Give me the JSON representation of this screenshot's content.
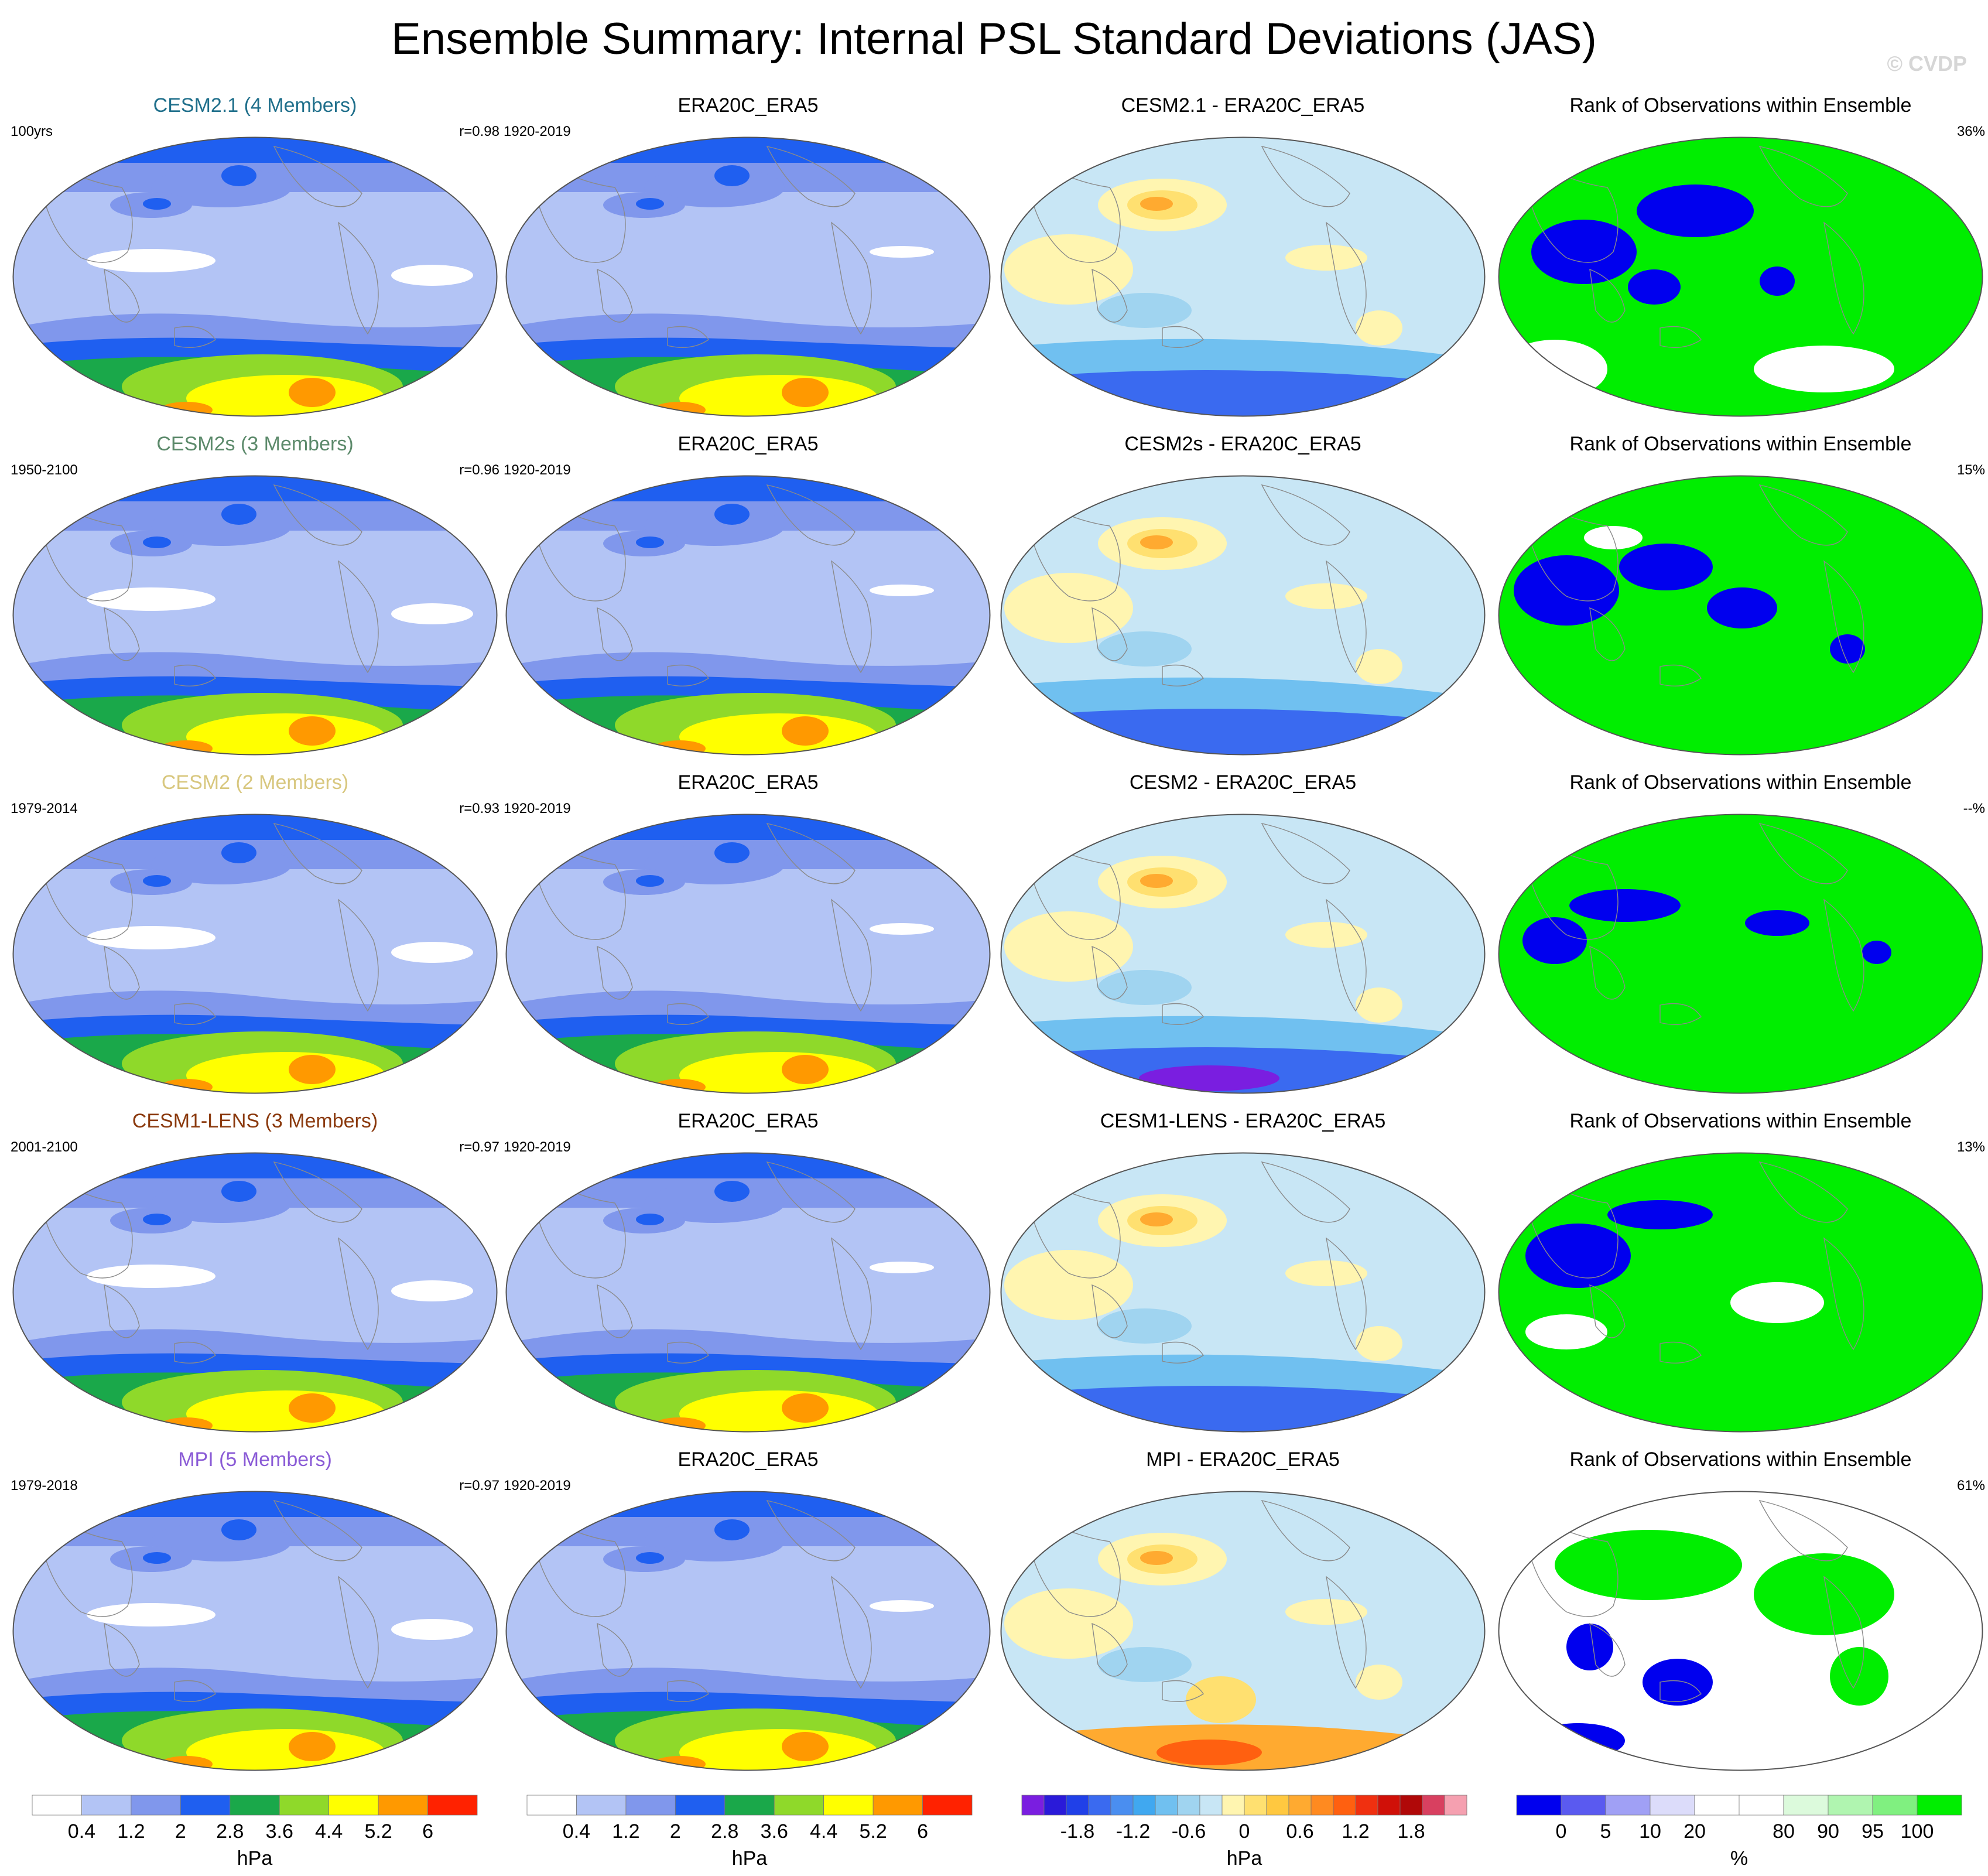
{
  "title": "Ensemble Summary: Internal PSL Standard Deviations (JAS)",
  "credit": "© CVDP",
  "rows": [
    {
      "model_title": "CESM2.1 (4 Members)",
      "model_color": "#1f6f8b",
      "years": "100yrs",
      "r": "r=0.98",
      "obs_title": "ERA20C_ERA5",
      "obs_years": "1920-2019",
      "diff_title": "CESM2.1 - ERA20C_ERA5",
      "rank_title": "Rank of Observations within Ensemble",
      "rank_pct": "36%"
    },
    {
      "model_title": "CESM2s (3 Members)",
      "model_color": "#5c8a6b",
      "years": "1950-2100",
      "r": "r=0.96",
      "obs_title": "ERA20C_ERA5",
      "obs_years": "1920-2019",
      "diff_title": "CESM2s - ERA20C_ERA5",
      "rank_title": "Rank of Observations within Ensemble",
      "rank_pct": "15%"
    },
    {
      "model_title": "CESM2 (2 Members)",
      "model_color": "#d8c77e",
      "years": "1979-2014",
      "r": "r=0.93",
      "obs_title": "ERA20C_ERA5",
      "obs_years": "1920-2019",
      "diff_title": "CESM2 - ERA20C_ERA5",
      "rank_title": "Rank of Observations within Ensemble",
      "rank_pct": "--%"
    },
    {
      "model_title": "CESM1-LENS (3 Members)",
      "model_color": "#8b3a0e",
      "years": "2001-2100",
      "r": "r=0.97",
      "obs_title": "ERA20C_ERA5",
      "obs_years": "1920-2019",
      "diff_title": "CESM1-LENS - ERA20C_ERA5",
      "rank_title": "Rank of Observations within Ensemble",
      "rank_pct": "13%"
    },
    {
      "model_title": "MPI (5 Members)",
      "model_color": "#8a5bd6",
      "years": "1979-2018",
      "r": "r=0.97",
      "obs_title": "ERA20C_ERA5",
      "obs_years": "1920-2019",
      "diff_title": "MPI - ERA20C_ERA5",
      "rank_title": "Rank of Observations within Ensemble",
      "rank_pct": "61%"
    }
  ],
  "colorbars": [
    {
      "unit": "hPa",
      "colors": [
        "#ffffff",
        "#b3c4f5",
        "#8097ec",
        "#1f5ff0",
        "#1aa84a",
        "#8fd92a",
        "#ffff00",
        "#ff9900",
        "#ff2200"
      ],
      "labels": [
        "0.4",
        "1.2",
        "2",
        "2.8",
        "3.6",
        "4.4",
        "5.2",
        "6"
      ]
    },
    {
      "unit": "hPa",
      "colors": [
        "#ffffff",
        "#b3c4f5",
        "#8097ec",
        "#1f5ff0",
        "#1aa84a",
        "#8fd92a",
        "#ffff00",
        "#ff9900",
        "#ff2200"
      ],
      "labels": [
        "0.4",
        "1.2",
        "2",
        "2.8",
        "3.6",
        "4.4",
        "5.2",
        "6"
      ]
    },
    {
      "unit": "hPa",
      "colors": [
        "#7a1ee0",
        "#2a1ad9",
        "#2040e8",
        "#3a6af0",
        "#4a8ef0",
        "#40a8f0",
        "#70c0f0",
        "#a0d4f0",
        "#c8e6f5",
        "#fff5b0",
        "#ffe070",
        "#ffc840",
        "#ffaa30",
        "#ff8a20",
        "#ff6010",
        "#f03010",
        "#d01008",
        "#b00808",
        "#d84060",
        "#f5a0b0"
      ],
      "labels": [
        "-1.8",
        "-1.2",
        "-0.6",
        "0",
        "0.6",
        "1.2",
        "1.8"
      ]
    },
    {
      "unit": "%",
      "colors": [
        "#0000ee",
        "#5a5af0",
        "#a0a0f5",
        "#dcdcfa",
        "#ffffff",
        "#ffffff",
        "#dcfadc",
        "#b0f5b0",
        "#80f080",
        "#00ee00"
      ],
      "labels": [
        "0",
        "5",
        "10",
        "20",
        "80",
        "90",
        "95",
        "100"
      ]
    }
  ],
  "palettes": {
    "std": [
      "#ffffff",
      "#b3c4f5",
      "#8097ec",
      "#1f5ff0",
      "#1aa84a",
      "#8fd92a",
      "#ffff00",
      "#ff9900",
      "#ff2200"
    ],
    "diff_bg": "#c8e6f5",
    "diff_warm": [
      "#fff5b0",
      "#ffe070",
      "#ffaa30",
      "#ff6010"
    ],
    "diff_cool": [
      "#a0d4f0",
      "#70c0f0",
      "#3a6af0",
      "#7a1ee0"
    ],
    "rank_green": "#00ee00",
    "rank_blue": "#0000ee"
  }
}
